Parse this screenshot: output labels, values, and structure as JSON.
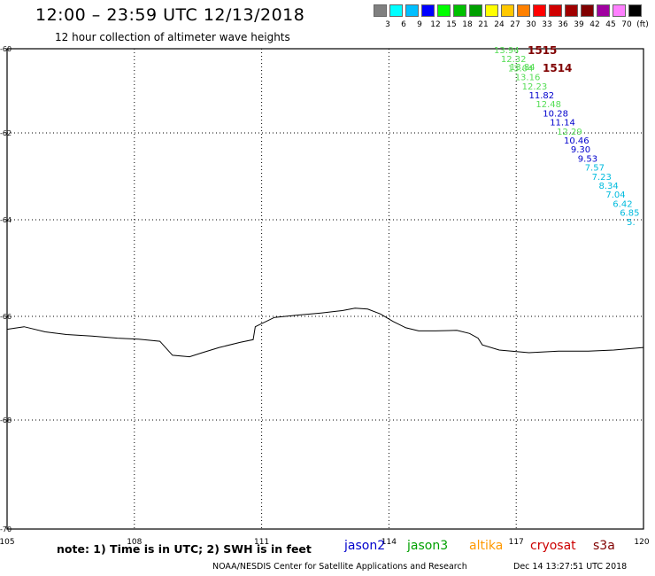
{
  "title": "12:00 – 23:59 UTC 12/13/2018",
  "subtitle": "12 hour collection of altimeter wave heights",
  "color_scale": {
    "colors": [
      "#808080",
      "#00ffff",
      "#00bfff",
      "#0000ff",
      "#00ff00",
      "#00c000",
      "#00a000",
      "#ffff00",
      "#ffc800",
      "#ff8000",
      "#ff0000",
      "#d00000",
      "#a00000",
      "#800000",
      "#a000a0",
      "#ff80ff",
      "#000000"
    ],
    "labels": [
      "3",
      "6",
      "9",
      "12",
      "15",
      "18",
      "21",
      "24",
      "27",
      "30",
      "33",
      "36",
      "39",
      "42",
      "45",
      "70",
      "(ft)"
    ]
  },
  "map": {
    "lon_labels": [
      "105",
      "108",
      "111",
      "114",
      "117",
      "120"
    ],
    "lat_labels": [
      "-60",
      "-62",
      "-64",
      "-66",
      "-68",
      "-70"
    ],
    "coastline": [
      [
        105,
        -66.25
      ],
      [
        105.4,
        -66.2
      ],
      [
        105.9,
        -66.3
      ],
      [
        106.4,
        -66.35
      ],
      [
        107,
        -66.38
      ],
      [
        107.6,
        -66.42
      ],
      [
        108.1,
        -66.44
      ],
      [
        108.6,
        -66.48
      ],
      [
        108.9,
        -66.75
      ],
      [
        109.3,
        -66.78
      ],
      [
        109.6,
        -66.7
      ],
      [
        110.0,
        -66.6
      ],
      [
        110.5,
        -66.5
      ],
      [
        110.8,
        -66.45
      ],
      [
        110.85,
        -66.2
      ],
      [
        111.3,
        -66.02
      ],
      [
        111.9,
        -65.97
      ],
      [
        112.4,
        -65.93
      ],
      [
        112.9,
        -65.88
      ],
      [
        113.2,
        -65.83
      ],
      [
        113.5,
        -65.85
      ],
      [
        113.8,
        -65.95
      ],
      [
        114.1,
        -66.1
      ],
      [
        114.4,
        -66.22
      ],
      [
        114.7,
        -66.28
      ],
      [
        115.1,
        -66.28
      ],
      [
        115.6,
        -66.27
      ],
      [
        115.9,
        -66.33
      ],
      [
        116.1,
        -66.42
      ],
      [
        116.2,
        -66.55
      ],
      [
        116.6,
        -66.65
      ],
      [
        117.3,
        -66.7
      ],
      [
        118.0,
        -66.67
      ],
      [
        118.7,
        -66.67
      ],
      [
        119.3,
        -66.65
      ],
      [
        120,
        -66.6
      ]
    ],
    "tracks": [
      {
        "name": "1515",
        "labels": [
          "13.94",
          "12.32",
          "13.04",
          "13.16",
          "12.23",
          "11.82",
          "12.48",
          "10.28",
          "11.14",
          "12.29",
          "10.46",
          "9.30",
          "9.53",
          "7.57",
          "7.23",
          "8.34",
          "7.04",
          "6.42",
          "6.85",
          "5."
        ]
      },
      {
        "name": "1514",
        "labels": [
          "13.84"
        ]
      }
    ]
  },
  "legend": {
    "items": [
      {
        "name": "jason2",
        "color": "#0000cc"
      },
      {
        "name": "jason3",
        "color": "#00a000"
      },
      {
        "name": "altika",
        "color": "#ff9900"
      },
      {
        "name": "cryosat",
        "color": "#cc0000"
      },
      {
        "name": "s3a",
        "color": "#800000"
      }
    ],
    "note": "note:  1) Time is in UTC;  2) SWH is in feet",
    "credit": "NOAA/NESDIS Center for Satellite Applications and Research",
    "timestamp": "Dec 14 13:27:51 UTC 2018"
  }
}
